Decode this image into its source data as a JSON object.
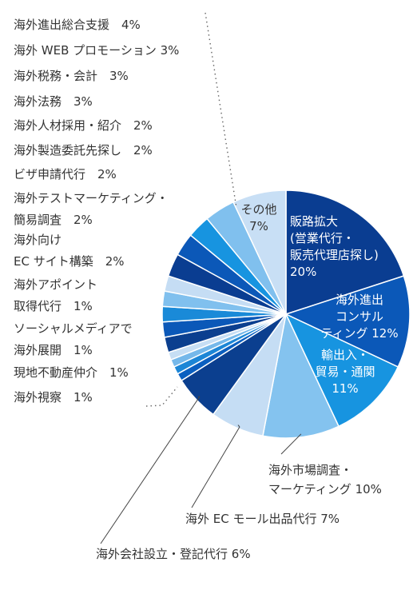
{
  "chart_data": {
    "type": "pie",
    "title": "",
    "slices": [
      {
        "name": "販路拡大（営業代行・販売代理店探し）",
        "value": 20,
        "label": "販路拡大\n(営業代行・\n販売代理店探し)\n20%",
        "color": "#0a3d91",
        "text_color": "#ffffff"
      },
      {
        "name": "海外進出コンサルティング",
        "value": 12,
        "label": "海外進出\nコンサル\nティング 12%",
        "color": "#0b58b8",
        "text_color": "#ffffff"
      },
      {
        "name": "輸出入・貿易・通関",
        "value": 11,
        "label": "輸出入・\n貿易・通関\n11%",
        "color": "#1794e0",
        "text_color": "#ffffff"
      },
      {
        "name": "海外市場調査・マーケティング",
        "value": 10,
        "label": "海外市場調査・\nマーケティング 10%",
        "color": "#84c3ef",
        "text_color": "#333333"
      },
      {
        "name": "海外ECモール出品代行",
        "value": 7,
        "label": "海外 EC モール出品代行 7%",
        "color": "#c5ddf4",
        "text_color": "#333333"
      },
      {
        "name": "海外会社設立・登記代行",
        "value": 6,
        "label": "海外会社設立・登記代行 6%",
        "color": "#0b3f8f",
        "text_color": "#333333"
      },
      {
        "name": "海外視察",
        "value": 1,
        "color": "#0a5fc0"
      },
      {
        "name": "現地不動産仲介",
        "value": 1,
        "color": "#1c86d6"
      },
      {
        "name": "ソーシャルメディアで海外展開",
        "value": 1,
        "color": "#75b8ea"
      },
      {
        "name": "海外アポイント取得代行",
        "value": 1,
        "color": "#c6def4"
      },
      {
        "name": "海外向けECサイト構築",
        "value": 2,
        "color": "#0b3f8f"
      },
      {
        "name": "海外テストマーケティング・簡易調査",
        "value": 2,
        "color": "#0b58b8"
      },
      {
        "name": "ビザ申請代行",
        "value": 2,
        "color": "#1a8ad8"
      },
      {
        "name": "海外製造委託先探し",
        "value": 2,
        "color": "#80c0ee"
      },
      {
        "name": "海外人材採用・紹介",
        "value": 2,
        "color": "#c5ddf4"
      },
      {
        "name": "海外法務",
        "value": 3,
        "color": "#0a3d91"
      },
      {
        "name": "海外税務・会計",
        "value": 3,
        "color": "#0b58b8"
      },
      {
        "name": "海外WEBプロモーション",
        "value": 3,
        "color": "#1794e0"
      },
      {
        "name": "海外進出総合支援",
        "value": 4,
        "color": "#80c0ee"
      },
      {
        "name": "その他",
        "value": 7,
        "label": "その他\n7%",
        "color": "#c8dff5",
        "text_color": "#333333"
      }
    ],
    "legend_items": [
      "海外進出総合支援　4%",
      "海外 WEB プロモーション 3%",
      "海外税務・会計　3%",
      "海外法務　3%",
      "海外人材採用・紹介　2%",
      "海外製造委託先探し　2%",
      "ビザ申請代行　2%",
      "海外テストマーケティング・\n簡易調査　2%",
      "海外向け\nEC サイト構築　2%",
      "海外アポイント\n取得代行　1%",
      "ソーシャルメディアで\n海外展開　1%",
      "現地不動産仲介　1%",
      "海外視察　1%"
    ],
    "legend_placement": "left"
  }
}
